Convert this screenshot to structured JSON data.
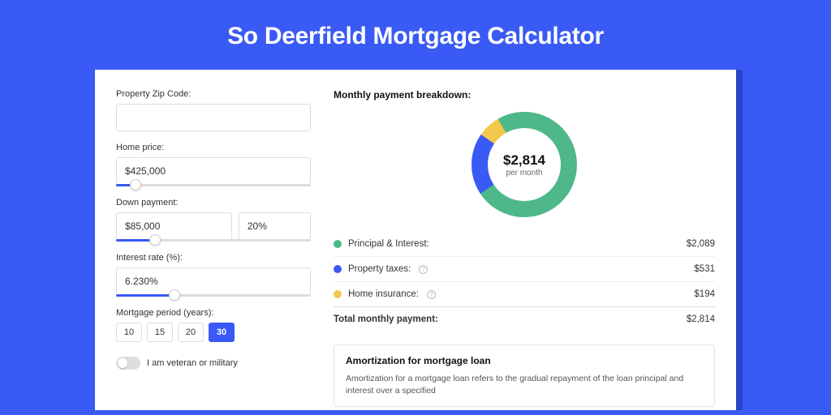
{
  "page": {
    "title": "So Deerfield Mortgage Calculator",
    "background_color": "#3a5af5",
    "shadow_color": "#2b45c8",
    "card_background": "#ffffff"
  },
  "form": {
    "zip": {
      "label": "Property Zip Code:",
      "value": ""
    },
    "home_price": {
      "label": "Home price:",
      "value": "$425,000",
      "slider_pct": 10
    },
    "down_payment": {
      "label": "Down payment:",
      "value": "$85,000",
      "pct_value": "20%",
      "slider_pct": 20
    },
    "interest_rate": {
      "label": "Interest rate (%):",
      "value": "6.230%",
      "slider_pct": 30
    },
    "period": {
      "label": "Mortgage period (years):",
      "options": [
        "10",
        "15",
        "20",
        "30"
      ],
      "selected": "30"
    },
    "veteran": {
      "label": "I am veteran or military",
      "on": false
    }
  },
  "breakdown": {
    "title": "Monthly payment breakdown:",
    "center_value": "$2,814",
    "center_sub": "per month",
    "donut": {
      "segments": [
        {
          "name": "principal_interest",
          "color": "#4eb88a",
          "pct": 74
        },
        {
          "name": "property_taxes",
          "color": "#3a5af5",
          "pct": 19
        },
        {
          "name": "home_insurance",
          "color": "#f2c94c",
          "pct": 7
        }
      ]
    },
    "items": [
      {
        "label": "Principal & Interest:",
        "value": "$2,089",
        "color": "#4eb88a",
        "info": false
      },
      {
        "label": "Property taxes:",
        "value": "$531",
        "color": "#3a5af5",
        "info": true
      },
      {
        "label": "Home insurance:",
        "value": "$194",
        "color": "#f2c94c",
        "info": true
      }
    ],
    "total": {
      "label": "Total monthly payment:",
      "value": "$2,814"
    }
  },
  "amortization": {
    "title": "Amortization for mortgage loan",
    "body": "Amortization for a mortgage loan refers to the gradual repayment of the loan principal and interest over a specified"
  }
}
